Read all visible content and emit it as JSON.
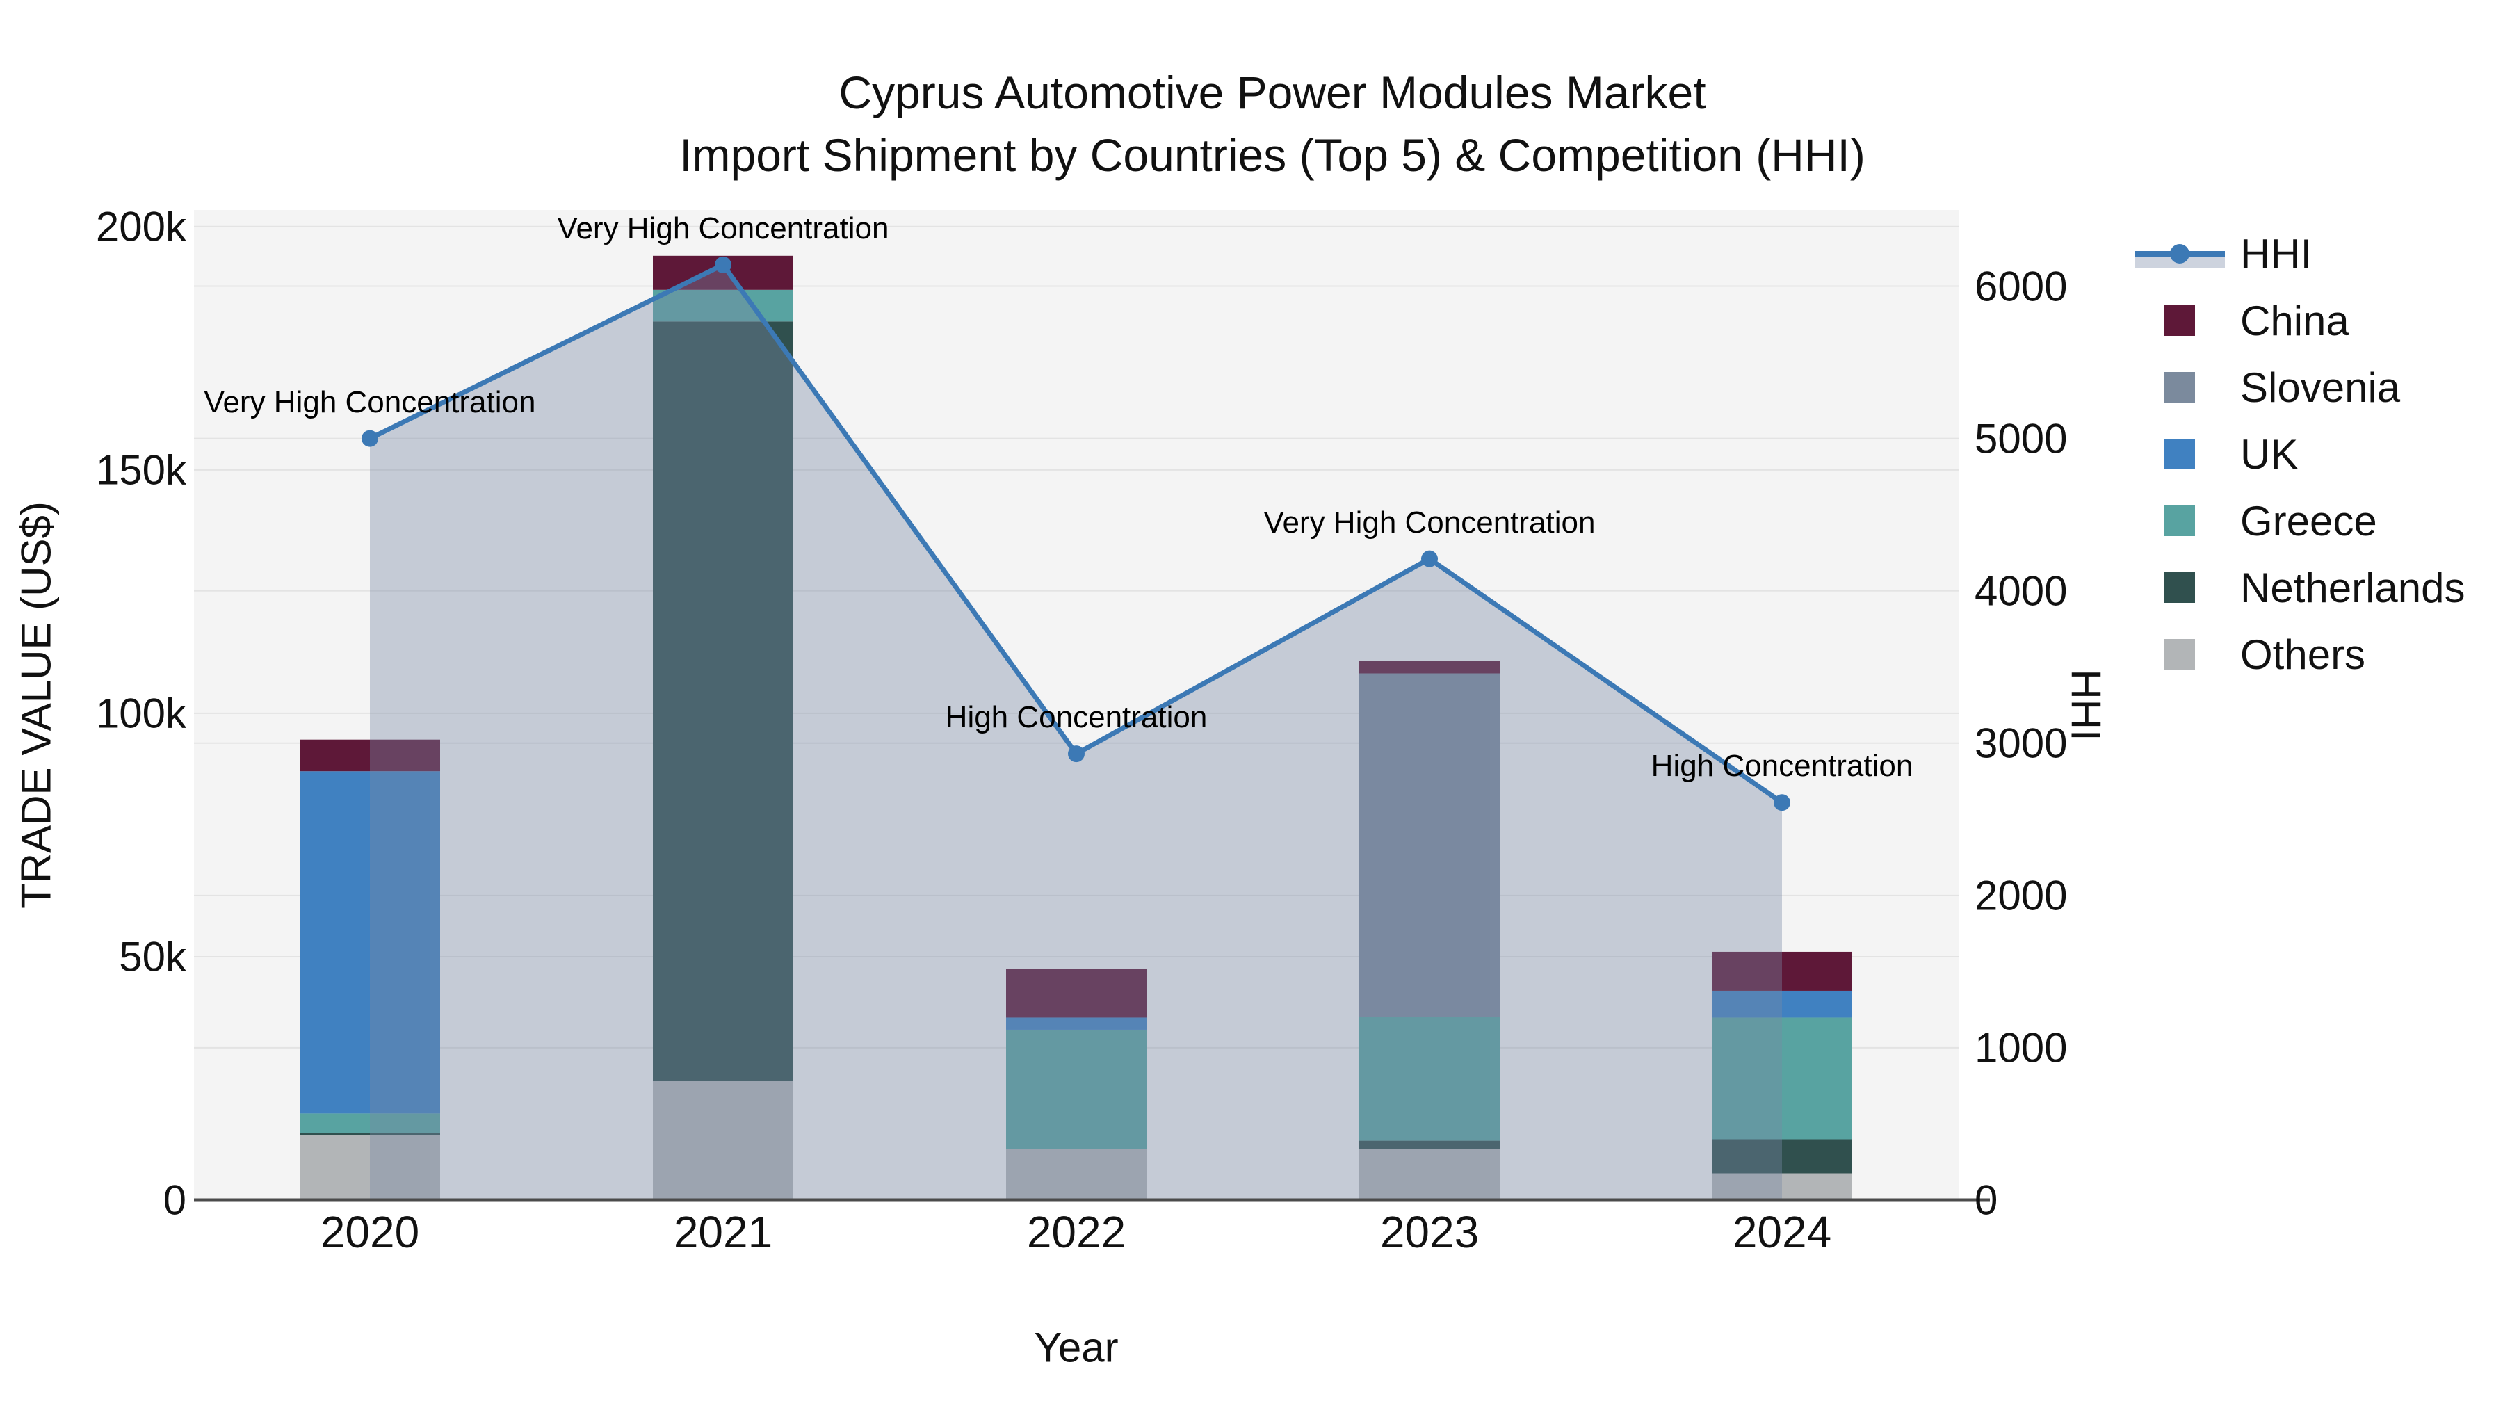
{
  "title": {
    "line1": "Cyprus Automotive Power Modules Market",
    "line2": "Import Shipment by Countries (Top 5) & Competition (HHI)"
  },
  "axes": {
    "y_left": {
      "title": "TRADE VALUE (US$)",
      "tick_labels": [
        "0",
        "50k",
        "100k",
        "150k",
        "200k"
      ],
      "tick_values": [
        0,
        50000,
        100000,
        150000,
        200000
      ]
    },
    "y_right": {
      "title": "HHI",
      "tick_labels": [
        "0",
        "1000",
        "2000",
        "3000",
        "4000",
        "5000",
        "6000"
      ],
      "tick_values": [
        0,
        1000,
        2000,
        3000,
        4000,
        5000,
        6000
      ]
    },
    "x": {
      "title": "Year",
      "categories": [
        "2020",
        "2021",
        "2022",
        "2023",
        "2024"
      ]
    }
  },
  "legend": {
    "entries": [
      {
        "label": "HHI",
        "type": "line",
        "color": "#3c79b5",
        "fill": "#cdd3de"
      },
      {
        "label": "China",
        "type": "box",
        "color": "#5e1838"
      },
      {
        "label": "Slovenia",
        "type": "box",
        "color": "#7b8a9d"
      },
      {
        "label": "UK",
        "type": "box",
        "color": "#4081c1"
      },
      {
        "label": "Greece",
        "type": "box",
        "color": "#58a3a1"
      },
      {
        "label": "Netherlands",
        "type": "box",
        "color": "#30504e"
      },
      {
        "label": "Others",
        "type": "box",
        "color": "#b2b5b7"
      }
    ]
  },
  "annotations": [
    {
      "category": "2020",
      "text": "Very High Concentration"
    },
    {
      "category": "2021",
      "text": "Very High Concentration"
    },
    {
      "category": "2022",
      "text": "High Concentration"
    },
    {
      "category": "2023",
      "text": "Very High Concentration"
    },
    {
      "category": "2024",
      "text": "High Concentration"
    }
  ],
  "chart_data": {
    "type": "bar",
    "subtype": "stacked-bars-with-line-area",
    "title": "Cyprus Automotive Power Modules Market — Import Shipment by Countries (Top 5) & Competition (HHI)",
    "xlabel": "Year",
    "ylabel_left": "TRADE VALUE (US$)",
    "ylabel_right": "HHI",
    "categories": [
      "2020",
      "2021",
      "2022",
      "2023",
      "2024"
    ],
    "stack_order_bottom_to_top": [
      "Others",
      "Netherlands",
      "Greece",
      "UK",
      "Slovenia",
      "China"
    ],
    "series": [
      {
        "name": "China",
        "color": "#5e1838",
        "values": [
          6500,
          7000,
          10000,
          2500,
          8000
        ]
      },
      {
        "name": "Slovenia",
        "color": "#7b8a9d",
        "values": [
          0,
          0,
          0,
          70500,
          0
        ]
      },
      {
        "name": "UK",
        "color": "#4081c1",
        "values": [
          70300,
          0,
          2500,
          0,
          5500
        ]
      },
      {
        "name": "Greece",
        "color": "#58a3a1",
        "values": [
          4000,
          6500,
          24500,
          25500,
          25000
        ]
      },
      {
        "name": "Netherlands",
        "color": "#30504e",
        "values": [
          500,
          156000,
          0,
          1700,
          7000
        ]
      },
      {
        "name": "Others",
        "color": "#b2b5b7",
        "values": [
          13300,
          24500,
          10500,
          10500,
          5500
        ]
      }
    ],
    "bar_totals": [
      94600,
      194000,
      47500,
      110700,
      51000
    ],
    "hhi_line": {
      "name": "HHI",
      "color": "#3c79b5",
      "area_fill": "rgba(122,136,165,0.38)",
      "values": [
        5000,
        6140,
        2930,
        4210,
        2610
      ]
    },
    "ylim_left": [
      0,
      203400
    ],
    "ylim_right": [
      0,
      6500
    ],
    "grid": true,
    "legend_position": "right"
  },
  "colors": {
    "plot_bg": "#f4f4f4",
    "grid": "#e3e3e3",
    "axis_line": "#4b4b4b",
    "text": "#111111"
  }
}
